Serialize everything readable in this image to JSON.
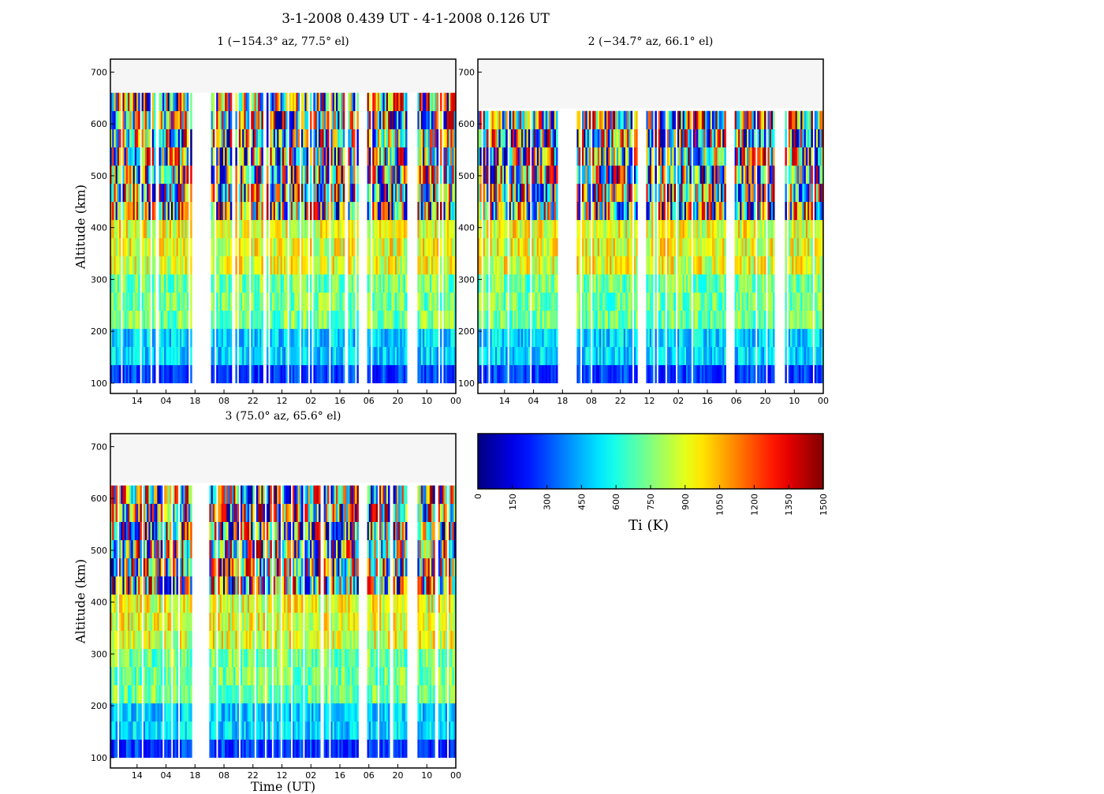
{
  "figure": {
    "suptitle": "3-1-2008 0.439 UT - 4-1-2008 0.126 UT",
    "ylabel": "Altitude (km)",
    "xlabel": "Time (UT)",
    "colorbar_label": "Ti (K)"
  },
  "colors": {
    "no_data_fill": "#f6f6f6",
    "background": "#ffffff"
  },
  "chart_data": [
    {
      "type": "heatmap",
      "title": "1 (−154.3° az, 77.5° el)",
      "ylabel": "Altitude (km)",
      "ylim": [
        80,
        725
      ],
      "yticks": [
        100,
        200,
        300,
        400,
        500,
        600,
        700
      ],
      "xtick_labels": [
        "14",
        "04",
        "18",
        "08",
        "22",
        "12",
        "02",
        "16",
        "06",
        "20",
        "10",
        "00"
      ],
      "altitude_max_km": 660,
      "data_segments": [
        [
          0,
          0.235
        ],
        [
          0.285,
          0.445
        ],
        [
          0.45,
          0.72
        ],
        [
          0.745,
          0.86
        ],
        [
          0.89,
          1.0
        ]
      ]
    },
    {
      "type": "heatmap",
      "title": "2 (−34.7° az, 66.1° el)",
      "ylabel": "",
      "ylim": [
        80,
        725
      ],
      "yticks": [
        100,
        200,
        300,
        400,
        500,
        600,
        700
      ],
      "xtick_labels": [
        "14",
        "04",
        "18",
        "08",
        "22",
        "12",
        "02",
        "16",
        "06",
        "20",
        "10",
        "00"
      ],
      "altitude_max_km": 630,
      "data_segments": [
        [
          0,
          0.235
        ],
        [
          0.285,
          0.445
        ],
        [
          0.45,
          0.46
        ],
        [
          0.485,
          0.72
        ],
        [
          0.745,
          0.86
        ],
        [
          0.89,
          1.0
        ]
      ]
    },
    {
      "type": "heatmap",
      "title": "3 (75.0° az, 65.6° el)",
      "ylabel": "Altitude (km)",
      "xlabel": "Time (UT)",
      "ylim": [
        80,
        725
      ],
      "yticks": [
        100,
        200,
        300,
        400,
        500,
        600,
        700
      ],
      "xtick_labels": [
        "14",
        "04",
        "18",
        "08",
        "22",
        "12",
        "02",
        "16",
        "06",
        "20",
        "10",
        "00"
      ],
      "altitude_max_km": 630,
      "data_segments": [
        [
          0,
          0.235
        ],
        [
          0.285,
          0.445
        ],
        [
          0.45,
          0.72
        ],
        [
          0.745,
          0.86
        ],
        [
          0.89,
          1.0
        ]
      ]
    },
    {
      "type": "colorbar",
      "label": "Ti (K)",
      "colormap": "jet",
      "range": [
        0,
        1500
      ],
      "ticks": [
        0,
        150,
        300,
        450,
        600,
        750,
        900,
        1050,
        1200,
        1350,
        1500
      ]
    }
  ]
}
